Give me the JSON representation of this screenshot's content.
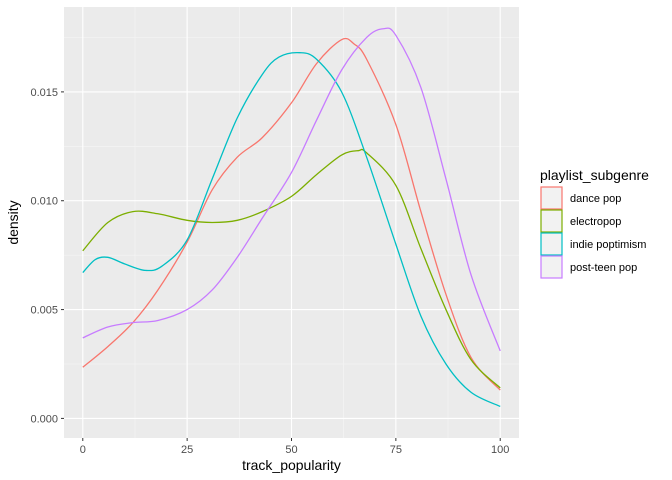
{
  "chart_data": {
    "type": "line",
    "title": "",
    "xlabel": "track_popularity",
    "ylabel": "density",
    "xlim": [
      -4.5,
      104.5
    ],
    "ylim": [
      -0.0009,
      0.0189
    ],
    "x_ticks": [
      0,
      25,
      50,
      75,
      100
    ],
    "x_tick_labels": [
      "0",
      "25",
      "50",
      "75",
      "100"
    ],
    "y_ticks": [
      0,
      0.005,
      0.01,
      0.015
    ],
    "y_tick_labels": [
      "0.000",
      "0.005",
      "0.010",
      "0.015"
    ],
    "grid": true,
    "legend": {
      "title": "playlist_subgenre",
      "position": "right"
    },
    "series": [
      {
        "name": "dance pop",
        "color": "#F8766D",
        "points": [
          [
            0,
            0.00235
          ],
          [
            6,
            0.0033
          ],
          [
            12,
            0.0044
          ],
          [
            18,
            0.0059
          ],
          [
            25,
            0.0081
          ],
          [
            31,
            0.0105
          ],
          [
            37,
            0.012
          ],
          [
            43,
            0.0129
          ],
          [
            50,
            0.0145
          ],
          [
            56,
            0.0163
          ],
          [
            62,
            0.0174
          ],
          [
            65,
            0.0172
          ],
          [
            68,
            0.0165
          ],
          [
            75,
            0.0135
          ],
          [
            81,
            0.0095
          ],
          [
            87,
            0.0057
          ],
          [
            93,
            0.0028
          ],
          [
            100,
            0.0013
          ]
        ]
      },
      {
        "name": "electropop",
        "color": "#7CAE00",
        "points": [
          [
            0,
            0.0077
          ],
          [
            6,
            0.009
          ],
          [
            12,
            0.0095
          ],
          [
            18,
            0.0094
          ],
          [
            25,
            0.0091
          ],
          [
            31,
            0.009
          ],
          [
            37,
            0.0091
          ],
          [
            43,
            0.0095
          ],
          [
            50,
            0.0102
          ],
          [
            56,
            0.0112
          ],
          [
            62,
            0.0121
          ],
          [
            66,
            0.0123
          ],
          [
            68,
            0.0122
          ],
          [
            75,
            0.0107
          ],
          [
            81,
            0.0078
          ],
          [
            87,
            0.005
          ],
          [
            93,
            0.0027
          ],
          [
            100,
            0.0014
          ]
        ]
      },
      {
        "name": "indie poptimism",
        "color": "#00BFC4",
        "points": [
          [
            0,
            0.0067
          ],
          [
            3,
            0.0073
          ],
          [
            6,
            0.0074
          ],
          [
            10,
            0.0071
          ],
          [
            15,
            0.0068
          ],
          [
            19,
            0.007
          ],
          [
            25,
            0.0082
          ],
          [
            31,
            0.011
          ],
          [
            37,
            0.0138
          ],
          [
            43,
            0.0158
          ],
          [
            47,
            0.0166
          ],
          [
            52,
            0.0168
          ],
          [
            56,
            0.0165
          ],
          [
            62,
            0.015
          ],
          [
            68,
            0.012
          ],
          [
            75,
            0.008
          ],
          [
            81,
            0.0047
          ],
          [
            87,
            0.0025
          ],
          [
            93,
            0.0012
          ],
          [
            100,
            0.00055
          ]
        ]
      },
      {
        "name": "post-teen pop",
        "color": "#C77CFF",
        "points": [
          [
            0,
            0.0037
          ],
          [
            6,
            0.0042
          ],
          [
            12,
            0.0044
          ],
          [
            18,
            0.0045
          ],
          [
            25,
            0.005
          ],
          [
            31,
            0.0059
          ],
          [
            37,
            0.0074
          ],
          [
            43,
            0.0092
          ],
          [
            50,
            0.0113
          ],
          [
            56,
            0.0137
          ],
          [
            62,
            0.016
          ],
          [
            68,
            0.0175
          ],
          [
            72,
            0.0179
          ],
          [
            75,
            0.0176
          ],
          [
            81,
            0.0152
          ],
          [
            87,
            0.011
          ],
          [
            93,
            0.0066
          ],
          [
            100,
            0.0031
          ]
        ]
      }
    ]
  }
}
